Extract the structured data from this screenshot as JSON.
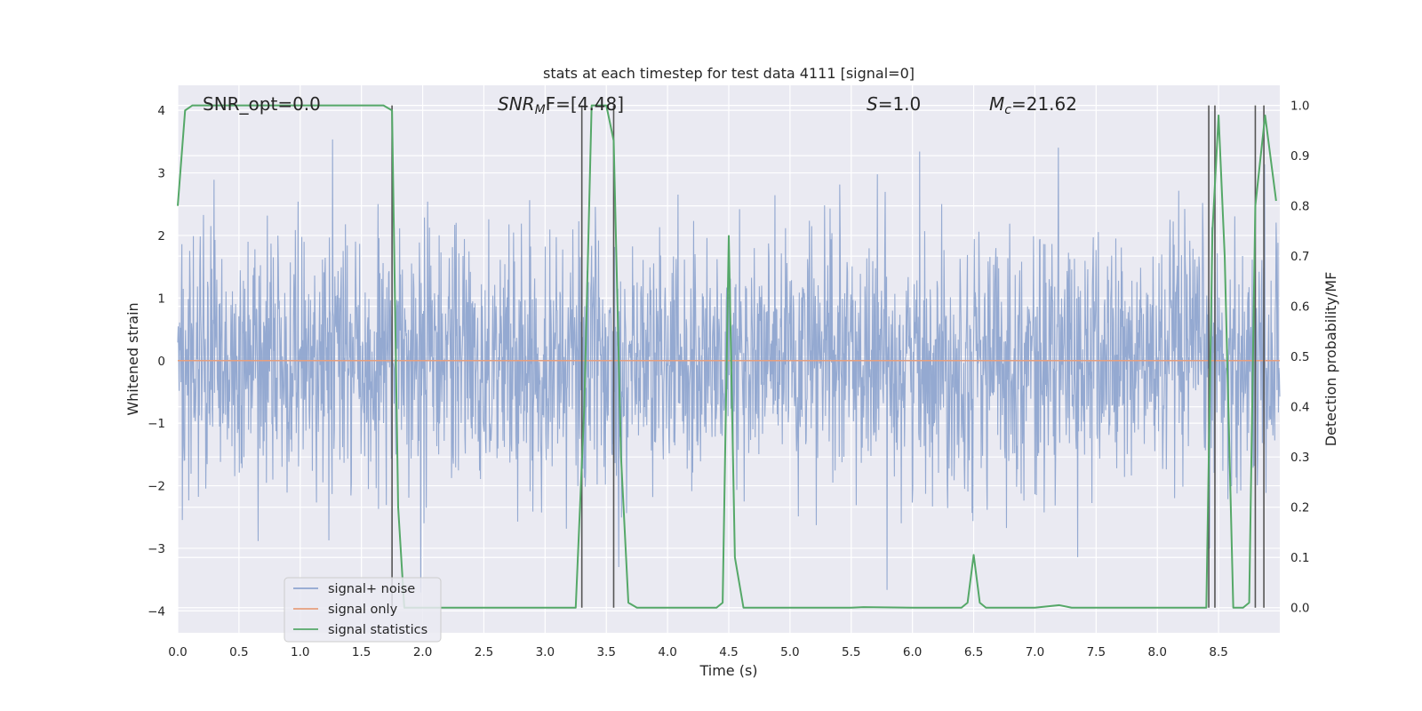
{
  "chart_data": {
    "type": "line",
    "title": "stats at each timestep for test data 4111 [signal=0]",
    "xlabel": "Time (s)",
    "ylabel": "Whitened strain",
    "y2label": "Detection probability/MF",
    "xlim": [
      0.0,
      9.0
    ],
    "ylim": [
      -4.35,
      4.4
    ],
    "y2lim": [
      -0.05,
      1.04
    ],
    "xticks": [
      "0.0",
      "0.5",
      "1.0",
      "1.5",
      "2.0",
      "2.5",
      "3.0",
      "3.5",
      "4.0",
      "4.5",
      "5.0",
      "5.5",
      "6.0",
      "6.5",
      "7.0",
      "7.5",
      "8.0",
      "8.5"
    ],
    "yticks": [
      "4",
      "3",
      "2",
      "1",
      "0",
      "−1",
      "−2",
      "−3",
      "−4"
    ],
    "y2ticks": [
      "1.0",
      "0.9",
      "0.8",
      "0.7",
      "0.6",
      "0.5",
      "0.4",
      "0.3",
      "0.2",
      "0.1",
      "0.0"
    ],
    "grid": true,
    "legend_placement": "lower-left",
    "annotations": {
      "snr_opt": "SNR_opt=0.0",
      "snr_mf_base": "SNR",
      "snr_mf_sub": "M",
      "snr_mf_tail": "F=[4.48]",
      "s_base": "S",
      "s_tail": "=1.0",
      "mc_base": "M",
      "mc_sub": "c",
      "mc_tail": "=21.62"
    },
    "series": [
      {
        "name": "signal+ noise",
        "color": "#8fa5cf",
        "axis": "left",
        "description_amplitude": "whitened noise, amplitude mostly within [-2.5, 2.5], peaks ~3.8",
        "envelope": {
          "typical_abs": 1.6,
          "peak_abs": 3.8
        }
      },
      {
        "name": "signal only",
        "color": "#e69f7e",
        "axis": "left",
        "x": [
          0.0,
          9.0
        ],
        "y": [
          0.0,
          0.0
        ]
      },
      {
        "name": "signal statistics",
        "color": "#55a868",
        "axis": "right",
        "x": [
          0.0,
          0.06,
          0.12,
          0.5,
          1.0,
          1.5,
          1.68,
          1.75,
          1.8,
          1.85,
          2.0,
          2.5,
          3.0,
          3.25,
          3.32,
          3.38,
          3.5,
          3.56,
          3.62,
          3.68,
          3.75,
          4.0,
          4.4,
          4.45,
          4.5,
          4.55,
          4.62,
          5.0,
          5.5,
          5.6,
          6.0,
          6.4,
          6.45,
          6.5,
          6.55,
          6.6,
          7.0,
          7.2,
          7.3,
          7.7,
          8.0,
          8.4,
          8.45,
          8.5,
          8.55,
          8.62,
          8.7,
          8.75,
          8.8,
          8.88,
          8.97
        ],
        "y": [
          0.8,
          0.99,
          1.0,
          1.0,
          1.0,
          1.0,
          1.0,
          0.99,
          0.2,
          0.0,
          0.0,
          0.0,
          0.0,
          0.0,
          0.4,
          1.0,
          1.0,
          0.93,
          0.3,
          0.01,
          0.0,
          0.0,
          0.0,
          0.01,
          0.74,
          0.1,
          0.0,
          0.0,
          0.0,
          0.001,
          0.0,
          0.0,
          0.01,
          0.105,
          0.01,
          0.0,
          0.0,
          0.005,
          0.0,
          0.0,
          0.0,
          0.0,
          0.75,
          0.98,
          0.7,
          0.0,
          0.0,
          0.01,
          0.8,
          0.98,
          0.81
        ]
      }
    ],
    "vlines": {
      "color": "#555555",
      "ymax_right": 1.0,
      "x": [
        1.75,
        3.3,
        3.56,
        8.42,
        8.47,
        8.8,
        8.87
      ]
    }
  },
  "colors": {
    "plot_bg": "#eaeaf2",
    "grid": "#ffffff",
    "legend_bg": "#eaeaf2",
    "legend_border": "#cccccc"
  }
}
